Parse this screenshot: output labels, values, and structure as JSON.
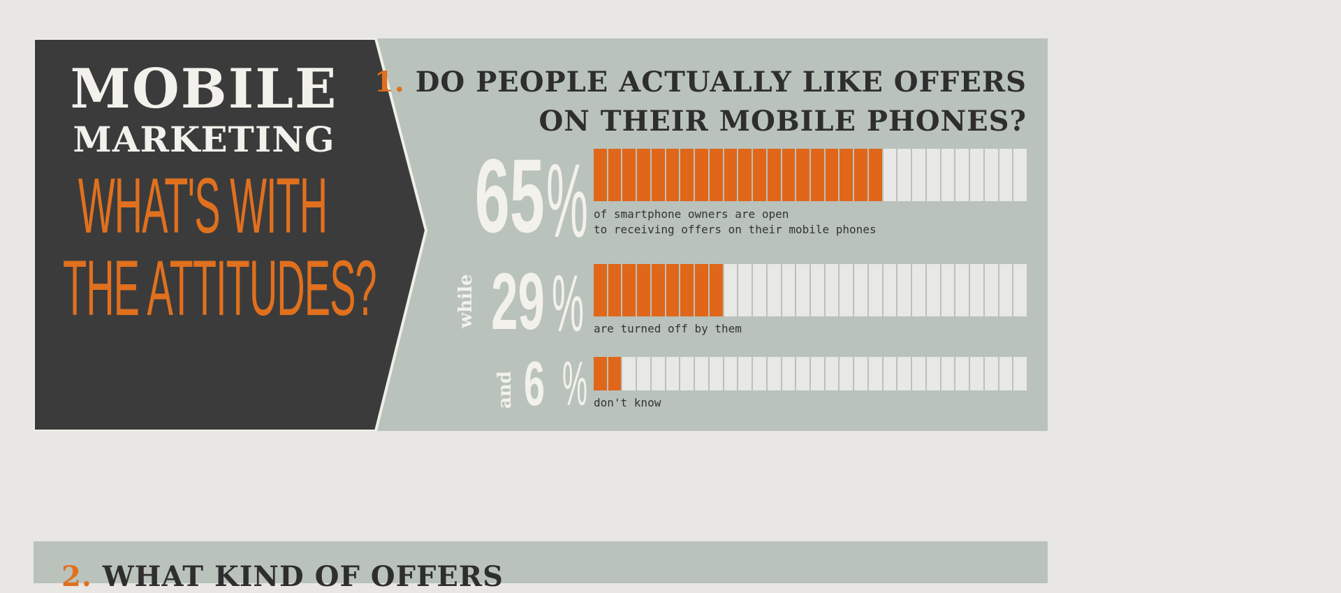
{
  "title": {
    "line1": "MOBILE",
    "line2": "MARKETING",
    "line3": "WHAT'S WITH",
    "line4": "THE ATTITUDES?"
  },
  "question1": {
    "number": "1.",
    "line1": "DO PEOPLE ACTUALLY LIKE OFFERS",
    "line2": "ON THEIR MOBILE PHONES?"
  },
  "question2": {
    "number": "2.",
    "text": "WHAT KIND OF OFFERS"
  },
  "colors": {
    "accent": "#e0661a",
    "dark": "#3a3a3a",
    "panel": "#b9c2bb",
    "empty": "#e8e8e6"
  },
  "chart_data": {
    "type": "bar",
    "orientation": "horizontal",
    "segments": 30,
    "xlim": [
      0,
      100
    ],
    "items": [
      {
        "prefix": "",
        "value": 65,
        "label": "65",
        "unit": "%",
        "caption1": "of smartphone owners are open",
        "caption2": "to receiving offers on their mobile phones"
      },
      {
        "prefix": "while",
        "value": 29,
        "label": "29",
        "unit": "%",
        "caption1": "are turned off by them",
        "caption2": ""
      },
      {
        "prefix": "and",
        "value": 6,
        "label": "6",
        "unit": "%",
        "caption1": "don't know",
        "caption2": ""
      }
    ]
  }
}
